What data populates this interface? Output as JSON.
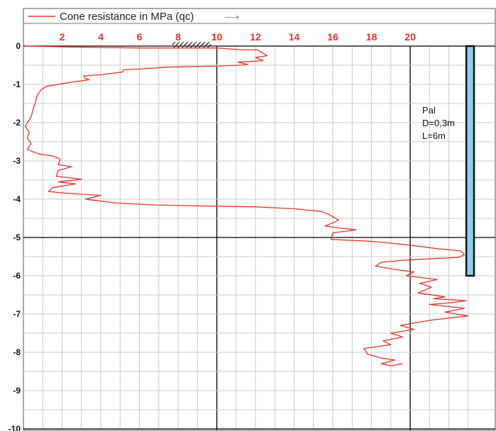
{
  "chart_data": {
    "type": "line",
    "title": "",
    "xlabel": "",
    "ylabel": "",
    "xlim": [
      0,
      24.4
    ],
    "ylim": [
      0,
      -10
    ],
    "x_ticks": [
      2,
      4,
      6,
      8,
      10,
      12,
      14,
      16,
      18,
      20
    ],
    "y_ticks": [
      0,
      -1,
      -2,
      -3,
      -4,
      -5,
      -6,
      -7,
      -8,
      -9,
      -10
    ],
    "grid": true,
    "legend": {
      "position": "top-left",
      "entries": [
        "Cone resistance in MPa (qc)"
      ]
    },
    "legend_arrow": "⟶",
    "series": [
      {
        "name": "Cone resistance in MPa (qc)",
        "color": "#e8322a",
        "points": [
          [
            0.1,
            0.0
          ],
          [
            3.0,
            -0.03
          ],
          [
            6.0,
            -0.05
          ],
          [
            10.0,
            -0.05
          ],
          [
            11.3,
            -0.1
          ],
          [
            12.1,
            -0.1
          ],
          [
            12.6,
            -0.25
          ],
          [
            12.0,
            -0.3
          ],
          [
            12.4,
            -0.38
          ],
          [
            11.1,
            -0.42
          ],
          [
            11.6,
            -0.48
          ],
          [
            11.2,
            -0.5
          ],
          [
            10.1,
            -0.52
          ],
          [
            7.5,
            -0.55
          ],
          [
            6.0,
            -0.6
          ],
          [
            5.2,
            -0.62
          ],
          [
            5.1,
            -0.68
          ],
          [
            4.0,
            -0.75
          ],
          [
            3.1,
            -0.78
          ],
          [
            3.2,
            -0.84
          ],
          [
            3.4,
            -0.88
          ],
          [
            2.4,
            -0.95
          ],
          [
            1.2,
            -1.05
          ],
          [
            0.9,
            -1.15
          ],
          [
            0.7,
            -1.3
          ],
          [
            0.6,
            -1.5
          ],
          [
            0.5,
            -1.65
          ],
          [
            0.4,
            -1.85
          ],
          [
            0.2,
            -2.0
          ],
          [
            0.1,
            -2.1
          ],
          [
            0.3,
            -2.25
          ],
          [
            0.2,
            -2.4
          ],
          [
            0.4,
            -2.55
          ],
          [
            0.2,
            -2.7
          ],
          [
            0.8,
            -2.82
          ],
          [
            1.5,
            -2.87
          ],
          [
            1.9,
            -2.95
          ],
          [
            1.8,
            -3.1
          ],
          [
            2.5,
            -3.15
          ],
          [
            1.8,
            -3.25
          ],
          [
            1.7,
            -3.4
          ],
          [
            3.0,
            -3.48
          ],
          [
            1.8,
            -3.55
          ],
          [
            2.7,
            -3.6
          ],
          [
            1.5,
            -3.7
          ],
          [
            1.3,
            -3.8
          ],
          [
            2.3,
            -3.85
          ],
          [
            4.0,
            -3.9
          ],
          [
            3.2,
            -4.0
          ],
          [
            4.8,
            -4.1
          ],
          [
            6.8,
            -4.15
          ],
          [
            9.5,
            -4.18
          ],
          [
            12.0,
            -4.2
          ],
          [
            14.0,
            -4.25
          ],
          [
            15.4,
            -4.32
          ],
          [
            15.8,
            -4.4
          ],
          [
            16.3,
            -4.55
          ],
          [
            15.6,
            -4.7
          ],
          [
            16.3,
            -4.75
          ],
          [
            17.2,
            -4.8
          ],
          [
            16.0,
            -4.88
          ],
          [
            15.9,
            -5.05
          ],
          [
            18.0,
            -5.1
          ],
          [
            19.0,
            -5.15
          ],
          [
            20.0,
            -5.2
          ],
          [
            21.5,
            -5.3
          ],
          [
            22.6,
            -5.35
          ],
          [
            22.8,
            -5.45
          ],
          [
            22.5,
            -5.52
          ],
          [
            21.3,
            -5.55
          ],
          [
            19.5,
            -5.6
          ],
          [
            18.5,
            -5.65
          ],
          [
            18.2,
            -5.75
          ],
          [
            19.4,
            -5.85
          ],
          [
            20.2,
            -5.9
          ],
          [
            19.8,
            -6.0
          ],
          [
            21.4,
            -6.1
          ],
          [
            20.5,
            -6.2
          ],
          [
            21.1,
            -6.3
          ],
          [
            20.4,
            -6.45
          ],
          [
            21.8,
            -6.55
          ],
          [
            21.2,
            -6.6
          ],
          [
            22.9,
            -6.65
          ],
          [
            22.2,
            -6.7
          ],
          [
            21.0,
            -6.75
          ],
          [
            22.8,
            -6.85
          ],
          [
            21.8,
            -6.95
          ],
          [
            23.0,
            -7.05
          ],
          [
            21.2,
            -7.15
          ],
          [
            20.0,
            -7.25
          ],
          [
            19.5,
            -7.3
          ],
          [
            20.2,
            -7.4
          ],
          [
            19.0,
            -7.5
          ],
          [
            19.6,
            -7.6
          ],
          [
            18.6,
            -7.7
          ],
          [
            19.0,
            -7.8
          ],
          [
            17.6,
            -7.9
          ],
          [
            17.8,
            -8.05
          ],
          [
            18.5,
            -8.15
          ],
          [
            19.2,
            -8.2
          ],
          [
            18.5,
            -8.3
          ],
          [
            19.0,
            -8.35
          ],
          [
            19.6,
            -8.3
          ]
        ]
      }
    ],
    "annotations": {
      "pile_label": [
        "Pal",
        "D=0,3m",
        "L=6m"
      ],
      "pile": {
        "x_range": [
          22.9,
          23.3
        ],
        "depth_range": [
          0,
          -6
        ],
        "fill": "#8fd0e8"
      },
      "hatched_zone": {
        "x_range": [
          7.7,
          9.7
        ],
        "depth": 0
      }
    },
    "colors": {
      "tick_labels_x": "#e8322a",
      "grid": "#cccccc",
      "major_grid": "#000000"
    }
  }
}
